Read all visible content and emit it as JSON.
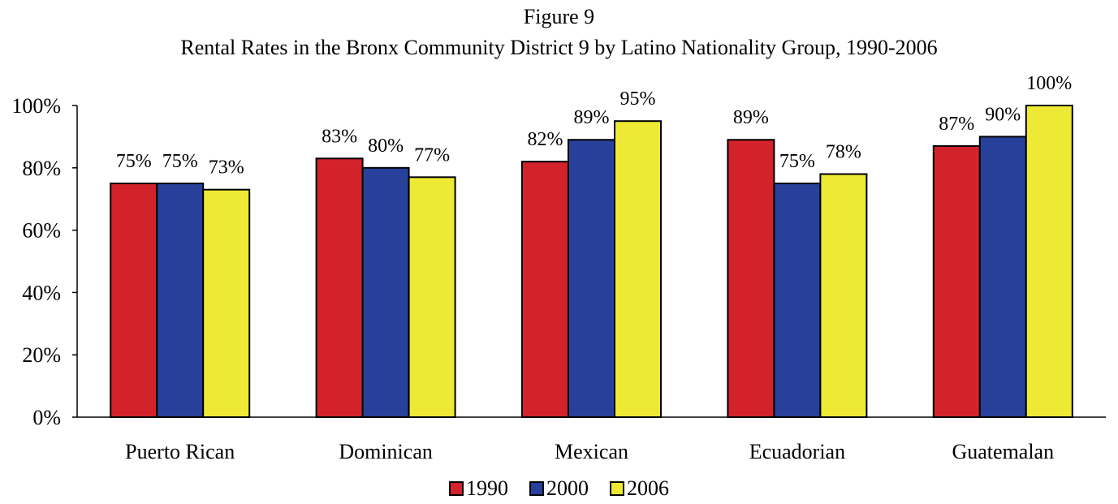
{
  "title_line1": "Figure 9",
  "title_line2": "Rental Rates in the Bronx Community District 9 by Latino Nationality Group, 1990-2006",
  "chart_data": {
    "type": "bar",
    "title": "Figure 9 Rental Rates in the Bronx Community District 9 by Latino Nationality Group, 1990-2006",
    "categories": [
      "Puerto Rican",
      "Dominican",
      "Mexican",
      "Ecuadorian",
      "Guatemalan"
    ],
    "series": [
      {
        "name": "1990",
        "color": "#D2232A",
        "values": [
          75,
          83,
          82,
          89,
          87
        ],
        "labels": [
          "75%",
          "83%",
          "82%",
          "89%",
          "87%"
        ]
      },
      {
        "name": "2000",
        "color": "#27419A",
        "values": [
          75,
          80,
          89,
          75,
          90
        ],
        "labels": [
          "75%",
          "80%",
          "89%",
          "75%",
          "90%"
        ]
      },
      {
        "name": "2006",
        "color": "#EEE934",
        "values": [
          73,
          77,
          95,
          78,
          100
        ],
        "labels": [
          "73%",
          "77%",
          "95%",
          "78%",
          "100%"
        ]
      }
    ],
    "ylim": [
      0,
      100
    ],
    "yticks": [
      "0%",
      "20%",
      "40%",
      "60%",
      "80%",
      "100%"
    ],
    "xlabel": "",
    "ylabel": "",
    "grid": false,
    "legend_position": "bottom"
  }
}
